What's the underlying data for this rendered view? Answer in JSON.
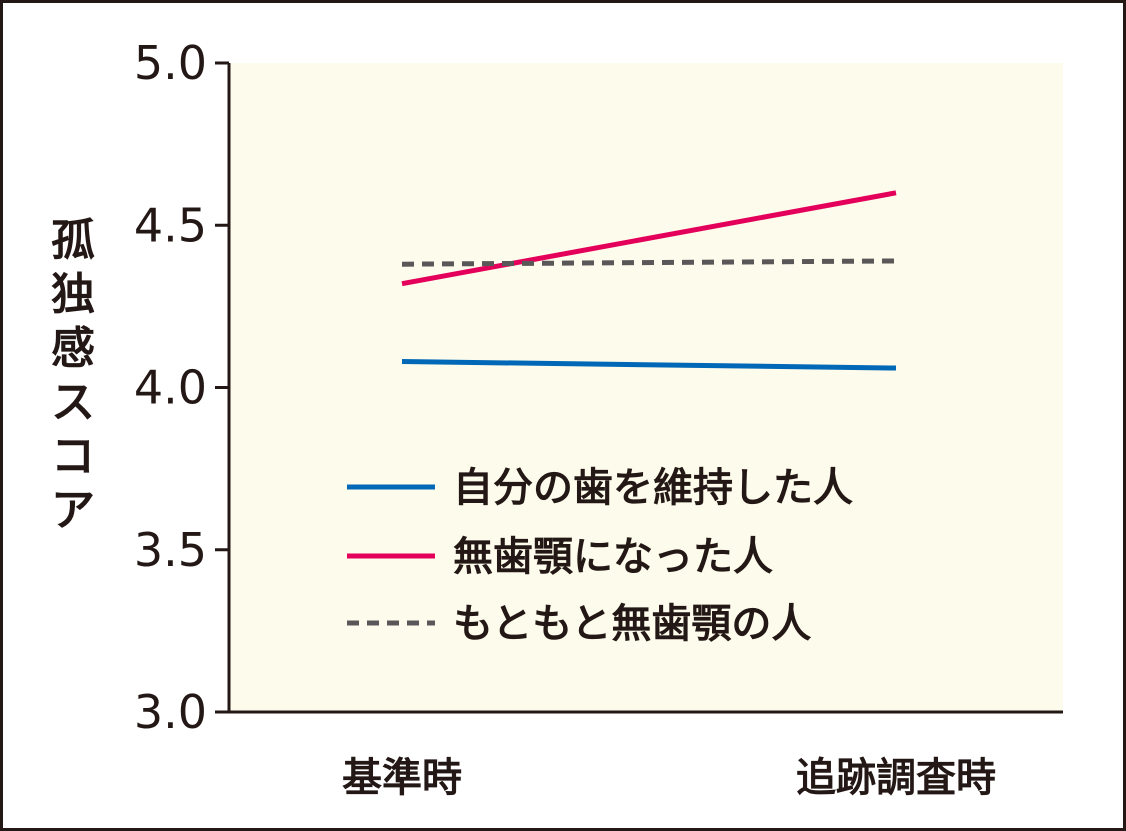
{
  "chart_data": {
    "type": "line",
    "title": "",
    "xlabel": "",
    "ylabel": "孤独感スコア",
    "categories": [
      "基準時",
      "追跡調査時"
    ],
    "ylim": [
      3.0,
      5.0
    ],
    "yticks": [
      "3.0",
      "3.5",
      "4.0",
      "4.5",
      "5.0"
    ],
    "grid": false,
    "legend_position": "bottom-right inside plot",
    "plot_background": "#fdfbeb",
    "series": [
      {
        "name": "自分の歯を維持した人",
        "values": [
          4.08,
          4.06
        ],
        "color": "#0068b7",
        "style": "solid"
      },
      {
        "name": "無歯顎になった人",
        "values": [
          4.32,
          4.6
        ],
        "color": "#e4005a",
        "style": "solid"
      },
      {
        "name": "もともと無歯顎の人",
        "values": [
          4.38,
          4.39
        ],
        "color": "#595757",
        "style": "dashed"
      }
    ]
  }
}
